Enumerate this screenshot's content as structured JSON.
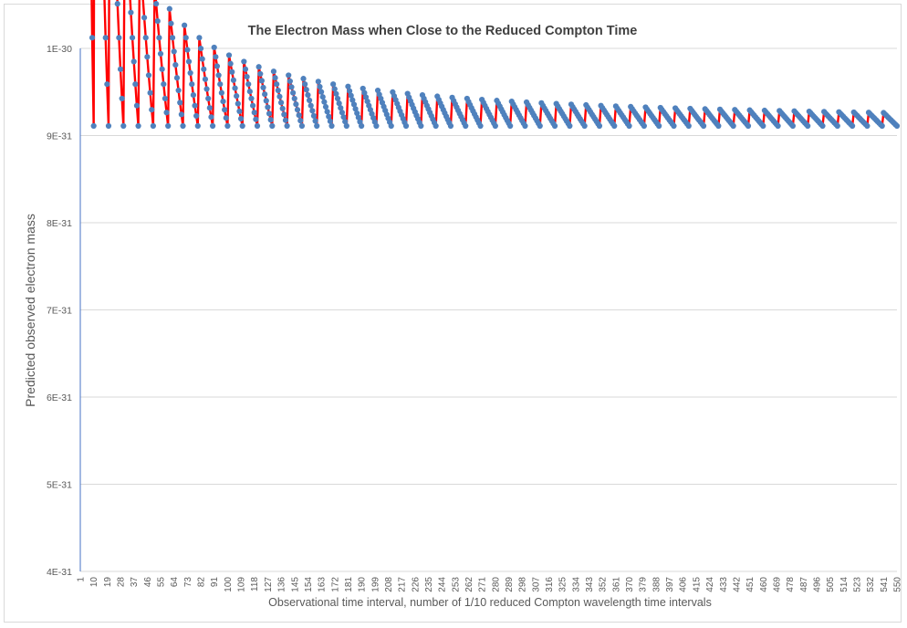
{
  "chart_data": {
    "type": "line",
    "title": "The Electron Mass when Close to the Reduced Compton Time",
    "xlabel": "Observational time interval, number of 1/10 reduced Compton wavelength time intervals",
    "ylabel": "Predicted observed electron mass",
    "y_tick_labels": [
      "4E-31",
      "5E-31",
      "6E-31",
      "7E-31",
      "8E-31",
      "9E-31",
      "1E-30"
    ],
    "y_ticks": [
      4e-31,
      5e-31,
      6e-31,
      7e-31,
      8e-31,
      9e-31,
      1e-30
    ],
    "ylim": [
      4e-31,
      1e-30
    ],
    "xlim": [
      1,
      550
    ],
    "x_tick_labels": [
      "1",
      "10",
      "19",
      "28",
      "37",
      "46",
      "55",
      "64",
      "73",
      "82",
      "91",
      "100",
      "109",
      "118",
      "127",
      "136",
      "145",
      "154",
      "163",
      "172",
      "181",
      "190",
      "199",
      "208",
      "217",
      "226",
      "235",
      "244",
      "253",
      "262",
      "271",
      "280",
      "289",
      "298",
      "307",
      "316",
      "325",
      "334",
      "343",
      "352",
      "361",
      "370",
      "379",
      "388",
      "397",
      "406",
      "415",
      "424",
      "433",
      "442",
      "451",
      "460",
      "469",
      "478",
      "487",
      "496",
      "505",
      "514",
      "523",
      "532",
      "541",
      "550"
    ],
    "series": [
      {
        "color": "#ff0000",
        "marker_color": "#4f81bd",
        "description_note": "",
        "model": {
          "m_peak": 9.11e-31,
          "n": 10,
          "x_max": 550
        }
      }
    ],
    "grid": "horizontal",
    "legend": "none"
  },
  "colors": {
    "line": "#ff0000",
    "marker": "#4f81bd",
    "grid": "#d9d9d9",
    "axis": "#4472c4",
    "text": "#595959",
    "title": "#404040"
  }
}
